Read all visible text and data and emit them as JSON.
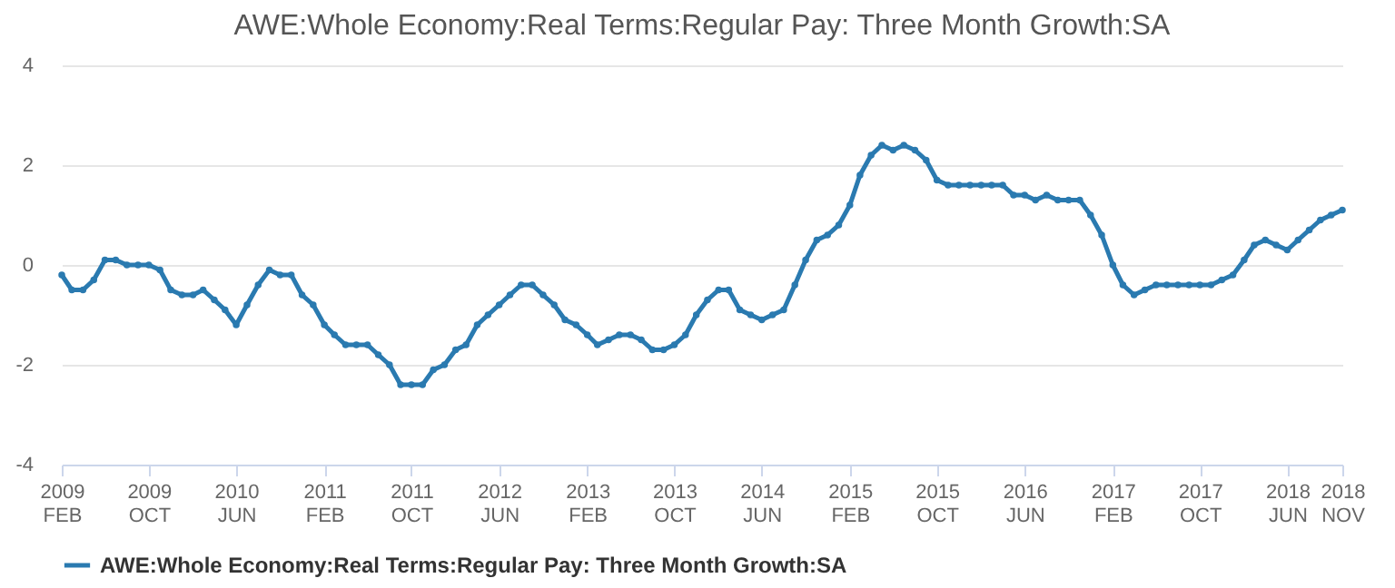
{
  "chart_data": {
    "type": "line",
    "title": "AWE:Whole Economy:Real Terms:Regular Pay: Three Month Growth:SA",
    "x": [
      "2009-02",
      "2009-03",
      "2009-04",
      "2009-05",
      "2009-06",
      "2009-07",
      "2009-08",
      "2009-09",
      "2009-10",
      "2009-11",
      "2009-12",
      "2010-01",
      "2010-02",
      "2010-03",
      "2010-04",
      "2010-05",
      "2010-06",
      "2010-07",
      "2010-08",
      "2010-09",
      "2010-10",
      "2010-11",
      "2010-12",
      "2011-01",
      "2011-02",
      "2011-03",
      "2011-04",
      "2011-05",
      "2011-06",
      "2011-07",
      "2011-08",
      "2011-09",
      "2011-10",
      "2011-11",
      "2011-12",
      "2012-01",
      "2012-02",
      "2012-03",
      "2012-04",
      "2012-05",
      "2012-06",
      "2012-07",
      "2012-08",
      "2012-09",
      "2012-10",
      "2012-11",
      "2012-12",
      "2013-01",
      "2013-02",
      "2013-03",
      "2013-04",
      "2013-05",
      "2013-06",
      "2013-07",
      "2013-08",
      "2013-09",
      "2013-10",
      "2013-11",
      "2013-12",
      "2014-01",
      "2014-02",
      "2014-03",
      "2014-04",
      "2014-05",
      "2014-06",
      "2014-07",
      "2014-08",
      "2014-09",
      "2014-10",
      "2014-11",
      "2014-12",
      "2015-01",
      "2015-02",
      "2015-03",
      "2015-04",
      "2015-05",
      "2015-06",
      "2015-07",
      "2015-08",
      "2015-09",
      "2015-10",
      "2015-11",
      "2015-12",
      "2016-01",
      "2016-02",
      "2016-03",
      "2016-04",
      "2016-05",
      "2016-06",
      "2016-07",
      "2016-08",
      "2016-09",
      "2016-10",
      "2016-11",
      "2016-12",
      "2017-01",
      "2017-02",
      "2017-03",
      "2017-04",
      "2017-05",
      "2017-06",
      "2017-07",
      "2017-08",
      "2017-09",
      "2017-10",
      "2017-11",
      "2017-12",
      "2018-01",
      "2018-02",
      "2018-03",
      "2018-04",
      "2018-05",
      "2018-06",
      "2018-07",
      "2018-08",
      "2018-09",
      "2018-10",
      "2018-11"
    ],
    "series": [
      {
        "name": "AWE:Whole Economy:Real Terms:Regular Pay: Three Month Growth:SA",
        "color": "#2a7ab0",
        "values": [
          -0.2,
          -0.5,
          -0.5,
          -0.3,
          0.1,
          0.1,
          0,
          0,
          0,
          -0.1,
          -0.5,
          -0.6,
          -0.6,
          -0.5,
          -0.7,
          -0.9,
          -1.2,
          -0.8,
          -0.4,
          -0.1,
          -0.2,
          -0.2,
          -0.6,
          -0.8,
          -1.2,
          -1.4,
          -1.6,
          -1.6,
          -1.6,
          -1.8,
          -2.0,
          -2.4,
          -2.4,
          -2.4,
          -2.1,
          -2.0,
          -1.7,
          -1.6,
          -1.2,
          -1.0,
          -0.8,
          -0.6,
          -0.4,
          -0.4,
          -0.6,
          -0.8,
          -1.1,
          -1.2,
          -1.4,
          -1.6,
          -1.5,
          -1.4,
          -1.4,
          -1.5,
          -1.7,
          -1.7,
          -1.6,
          -1.4,
          -1.0,
          -0.7,
          -0.5,
          -0.5,
          -0.9,
          -1.0,
          -1.1,
          -1.0,
          -0.9,
          -0.4,
          0.1,
          0.5,
          0.6,
          0.8,
          1.2,
          1.8,
          2.2,
          2.4,
          2.3,
          2.4,
          2.3,
          2.1,
          1.7,
          1.6,
          1.6,
          1.6,
          1.6,
          1.6,
          1.6,
          1.4,
          1.4,
          1.3,
          1.4,
          1.3,
          1.3,
          1.3,
          1.0,
          0.6,
          0.0,
          -0.4,
          -0.6,
          -0.5,
          -0.4,
          -0.4,
          -0.4,
          -0.4,
          -0.4,
          -0.4,
          -0.3,
          -0.2,
          0.1,
          0.4,
          0.5,
          0.4,
          0.3,
          0.5,
          0.7,
          0.9,
          1.0,
          1.1
        ]
      }
    ],
    "xlim": [
      "2009-02",
      "2018-11"
    ],
    "xticks": [
      {
        "value": "2009-02",
        "label": "2009 FEB"
      },
      {
        "value": "2009-10",
        "label": "2009 OCT"
      },
      {
        "value": "2010-06",
        "label": "2010 JUN"
      },
      {
        "value": "2011-02",
        "label": "2011 FEB"
      },
      {
        "value": "2011-10",
        "label": "2011 OCT"
      },
      {
        "value": "2012-06",
        "label": "2012 JUN"
      },
      {
        "value": "2013-02",
        "label": "2013 FEB"
      },
      {
        "value": "2013-10",
        "label": "2013 OCT"
      },
      {
        "value": "2014-06",
        "label": "2014 JUN"
      },
      {
        "value": "2015-02",
        "label": "2015 FEB"
      },
      {
        "value": "2015-10",
        "label": "2015 OCT"
      },
      {
        "value": "2016-06",
        "label": "2016 JUN"
      },
      {
        "value": "2017-02",
        "label": "2017 FEB"
      },
      {
        "value": "2017-10",
        "label": "2017 OCT"
      },
      {
        "value": "2018-06",
        "label": "2018 JUN"
      },
      {
        "value": "2018-11",
        "label": "2018 NOV"
      }
    ],
    "ylim": [
      -4,
      4
    ],
    "yticks": [
      -4,
      -2,
      0,
      2,
      4
    ],
    "grid": "y",
    "legend": "bottom",
    "marker": "circle",
    "line_style": "solid"
  }
}
